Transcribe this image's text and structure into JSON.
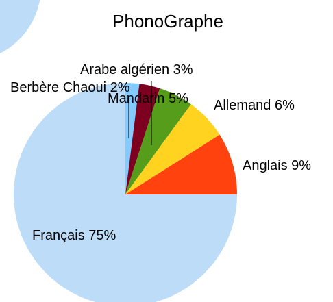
{
  "chart_data": {
    "type": "pie",
    "title": "PhonoGraphe",
    "categories": [
      "Berbère Chaoui",
      "Arabe algérien",
      "Mandarin",
      "Allemand",
      "Anglais",
      "Français"
    ],
    "values": [
      2,
      3,
      5,
      6,
      9,
      75
    ],
    "value_labels": [
      "2%",
      "3%",
      "5%",
      "6%",
      "9%",
      "75%"
    ],
    "colors": [
      "#83caff",
      "#7e0021",
      "#579d1c",
      "#ffd320",
      "#ff420e",
      "#bcdcf8"
    ]
  }
}
